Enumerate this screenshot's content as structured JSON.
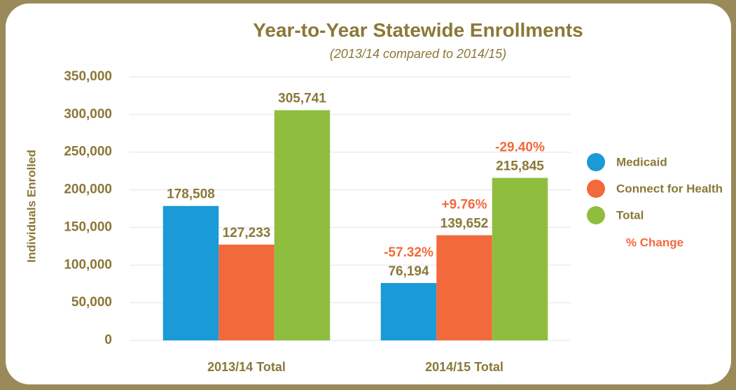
{
  "chart_data": {
    "type": "bar",
    "title": "Year-to-Year Statewide Enrollments",
    "subtitle": "(2013/14 compared to 2014/15)",
    "y_label": "Individuals Enrolled",
    "categories": [
      "2013/14 Total",
      "2014/15 Total"
    ],
    "series": [
      {
        "name": "Medicaid",
        "color": "#1a9ad7",
        "values": [
          178508,
          76194
        ],
        "value_labels": [
          "178,508",
          "76,194"
        ],
        "change_labels": [
          null,
          "-57.32%"
        ]
      },
      {
        "name": "Connect for Health",
        "color": "#f2693c",
        "values": [
          127233,
          139652
        ],
        "value_labels": [
          "127,233",
          "139,652"
        ],
        "change_labels": [
          null,
          "+9.76%"
        ]
      },
      {
        "name": "Total",
        "color": "#8fbe3e",
        "values": [
          305741,
          215845
        ],
        "value_labels": [
          "305,741",
          "215,845"
        ],
        "change_labels": [
          null,
          "-29.40%"
        ]
      }
    ],
    "change_legend": "% Change",
    "change_color": "#f2693c",
    "ylim": [
      0,
      350000
    ],
    "yticks": [
      0,
      {
        "value": 50000,
        "label": "50,000"
      },
      {
        "value": 100000,
        "label": "100,000"
      },
      {
        "value": 150000,
        "label": "150,000"
      },
      {
        "value": 200000,
        "label": "200,000"
      },
      {
        "value": 250000,
        "label": "250,000"
      },
      {
        "value": 300000,
        "label": "300,000"
      },
      {
        "value": 350000,
        "label": "350,000"
      }
    ],
    "grid": true,
    "legend": "right"
  }
}
